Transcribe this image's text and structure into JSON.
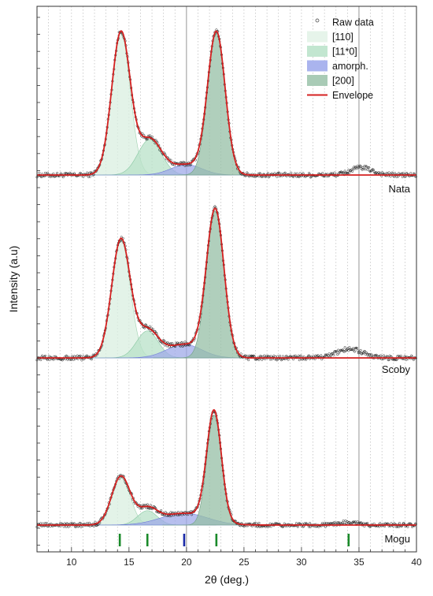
{
  "chart_data": {
    "type": "line",
    "xlabel": "2θ (deg.)",
    "ylabel": "Intensity (a.u)",
    "xlim": [
      7,
      40
    ],
    "xticks": [
      10,
      15,
      20,
      25,
      30,
      35,
      40
    ],
    "grid": "vertical dotted lines every 1 deg",
    "reference_lines_x": [
      20,
      35
    ],
    "legend": {
      "position": "top-right",
      "entries": [
        {
          "label": "Raw data",
          "style": "open-marker",
          "color": "#333333"
        },
        {
          "label": "[110]",
          "style": "fill",
          "color": "#e6f4ea"
        },
        {
          "label": "[11*0]",
          "style": "fill",
          "color": "#c2e6d0"
        },
        {
          "label": "amorph.",
          "style": "fill",
          "color": "#aab4ee"
        },
        {
          "label": "[200]",
          "style": "fill",
          "color": "#a9cbb6"
        },
        {
          "label": "Envelope",
          "style": "line",
          "color": "#d42020"
        }
      ]
    },
    "components": [
      {
        "name": "[110]",
        "color": "#d9efe0",
        "stroke": "#9fd1b0"
      },
      {
        "name": "[11*0]",
        "color": "#b8e2c8",
        "stroke": "#86c6a0"
      },
      {
        "name": "amorph.",
        "color": "#9fa9e8",
        "stroke": "#6f7bd8"
      },
      {
        "name": "[200]",
        "color": "#95bfa5",
        "stroke": "#6f9f83"
      }
    ],
    "panels": [
      {
        "label": "Nata",
        "peaks": [
          {
            "component": "[110]",
            "center": 14.3,
            "height": 0.96,
            "fwhm": 1.9
          },
          {
            "component": "[11*0]",
            "center": 16.8,
            "height": 0.24,
            "fwhm": 2.4
          },
          {
            "component": "amorph.",
            "center": 20.0,
            "height": 0.07,
            "fwhm": 3.2
          },
          {
            "component": "[200]",
            "center": 22.6,
            "height": 0.96,
            "fwhm": 1.8
          }
        ],
        "extra_bump": {
          "center": 35.2,
          "height": 0.05,
          "fwhm": 2.2
        }
      },
      {
        "label": "Scoby",
        "peaks": [
          {
            "component": "[110]",
            "center": 14.3,
            "height": 0.79,
            "fwhm": 1.9
          },
          {
            "component": "[11*0]",
            "center": 16.6,
            "height": 0.18,
            "fwhm": 2.2
          },
          {
            "component": "amorph.",
            "center": 19.8,
            "height": 0.09,
            "fwhm": 3.6
          },
          {
            "component": "[200]",
            "center": 22.5,
            "height": 0.98,
            "fwhm": 1.8
          }
        ],
        "extra_bump": {
          "center": 34.2,
          "height": 0.06,
          "fwhm": 2.6
        }
      },
      {
        "label": "Mogu",
        "peaks": [
          {
            "component": "[110]",
            "center": 14.3,
            "height": 0.37,
            "fwhm": 1.9
          },
          {
            "component": "[11*0]",
            "center": 16.6,
            "height": 0.11,
            "fwhm": 2.0
          },
          {
            "component": "amorph.",
            "center": 19.8,
            "height": 0.09,
            "fwhm": 4.8
          },
          {
            "component": "[200]",
            "center": 22.4,
            "height": 0.84,
            "fwhm": 1.5
          }
        ],
        "extra_bump": {
          "center": 34.0,
          "height": 0.02,
          "fwhm": 2.0
        }
      }
    ],
    "reference_markers": [
      {
        "x": 14.2,
        "color": "#1a8a2a"
      },
      {
        "x": 16.6,
        "color": "#1a8a2a"
      },
      {
        "x": 19.8,
        "color": "#1a2aa8"
      },
      {
        "x": 22.6,
        "color": "#1a8a2a"
      },
      {
        "x": 34.1,
        "color": "#1a8a2a"
      }
    ]
  }
}
